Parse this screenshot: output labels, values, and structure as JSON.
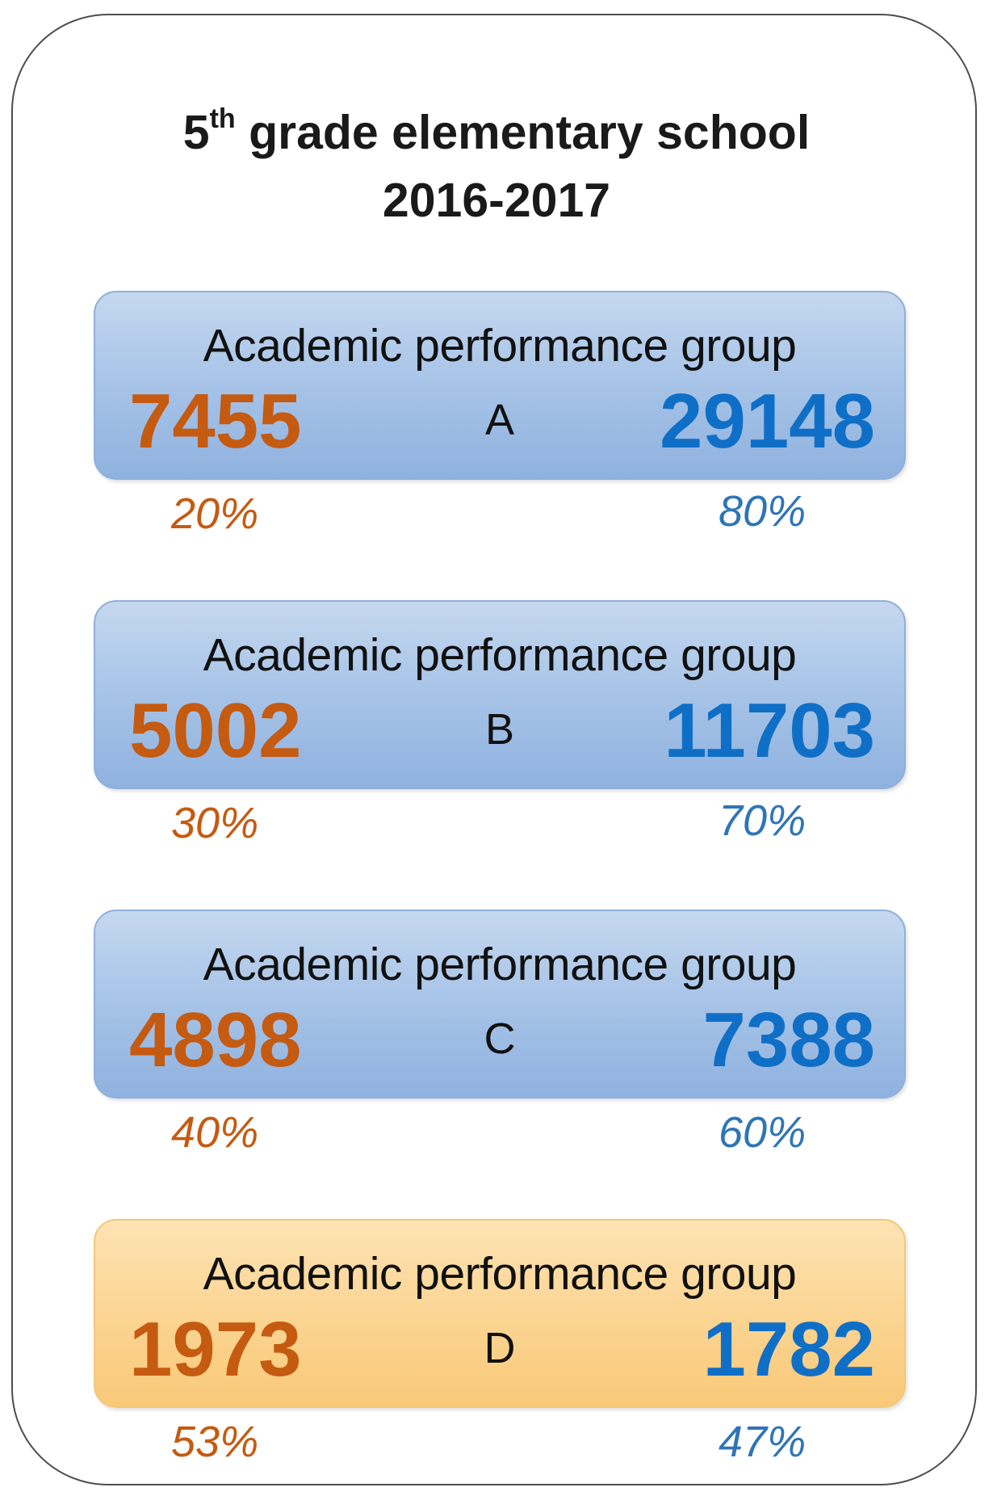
{
  "title": {
    "line1_prefix": "5",
    "line1_sup": "th",
    "line1_rest": " grade elementary school",
    "line2": "2016-2017"
  },
  "groups": [
    {
      "label": "Academic performance group",
      "letter": "A",
      "left_count": "7455",
      "right_count": "29148",
      "left_pct": "20%",
      "right_pct": "80%",
      "highlight": false
    },
    {
      "label": "Academic performance group",
      "letter": "B",
      "left_count": "5002",
      "right_count": "11703",
      "left_pct": "30%",
      "right_pct": "70%",
      "highlight": false
    },
    {
      "label": "Academic performance group",
      "letter": "C",
      "left_count": "4898",
      "right_count": "7388",
      "left_pct": "40%",
      "right_pct": "60%",
      "highlight": false
    },
    {
      "label": "Academic performance group",
      "letter": "D",
      "left_count": "1973",
      "right_count": "1782",
      "left_pct": "53%",
      "right_pct": "47%",
      "highlight": true
    }
  ],
  "colors": {
    "left_value": "#c55a11",
    "right_value": "#0f6fc6",
    "box_blue": "#a9c5e8",
    "box_orange": "#fbd594"
  }
}
